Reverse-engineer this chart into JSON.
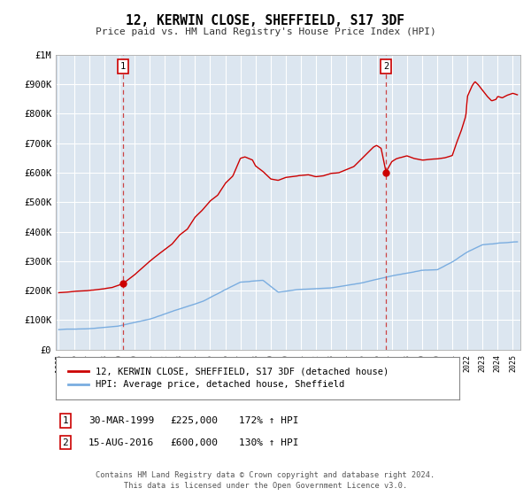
{
  "title": "12, KERWIN CLOSE, SHEFFIELD, S17 3DF",
  "subtitle": "Price paid vs. HM Land Registry's House Price Index (HPI)",
  "background_color": "#ffffff",
  "plot_bg_color": "#dce6f0",
  "grid_color": "#ffffff",
  "red_line_color": "#cc0000",
  "blue_line_color": "#7aade0",
  "point1_date_x": 1999.24,
  "point1_y": 225000,
  "point2_date_x": 2016.62,
  "point2_y": 600000,
  "xmin": 1994.8,
  "xmax": 2025.5,
  "ymin": 0,
  "ymax": 1000000,
  "yticks": [
    0,
    100000,
    200000,
    300000,
    400000,
    500000,
    600000,
    700000,
    800000,
    900000,
    1000000
  ],
  "ytick_labels": [
    "£0",
    "£100K",
    "£200K",
    "£300K",
    "£400K",
    "£500K",
    "£600K",
    "£700K",
    "£800K",
    "£900K",
    "£1M"
  ],
  "legend_label_red": "12, KERWIN CLOSE, SHEFFIELD, S17 3DF (detached house)",
  "legend_label_blue": "HPI: Average price, detached house, Sheffield",
  "note1_num": "1",
  "note1_date": "30-MAR-1999",
  "note1_price": "£225,000",
  "note1_hpi": "172% ↑ HPI",
  "note2_num": "2",
  "note2_date": "15-AUG-2016",
  "note2_price": "£600,000",
  "note2_hpi": "130% ↑ HPI",
  "footer": "Contains HM Land Registry data © Crown copyright and database right 2024.\nThis data is licensed under the Open Government Licence v3.0."
}
